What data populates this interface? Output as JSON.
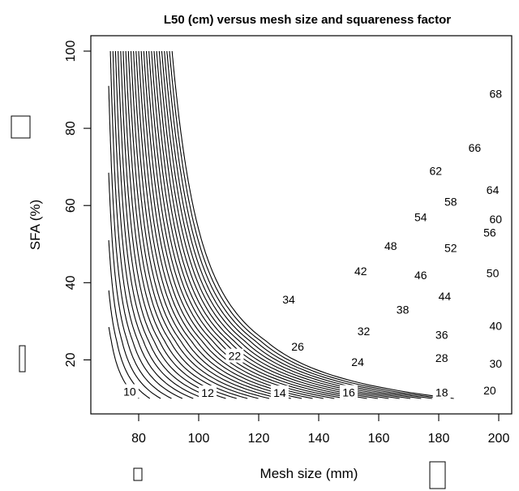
{
  "chart_data": {
    "type": "contour",
    "title": "L50 (cm) versus mesh size and squareness factor",
    "xlabel": "Mesh size (mm)",
    "ylabel": "SFA (%)",
    "xlim": [
      70,
      200
    ],
    "ylim": [
      10,
      100
    ],
    "x_ticks": [
      80,
      100,
      120,
      140,
      160,
      180,
      200
    ],
    "y_ticks": [
      20,
      40,
      60,
      80,
      100
    ],
    "grid": false,
    "legend": "none",
    "contour_levels": [
      10,
      12,
      14,
      16,
      18,
      20,
      22,
      24,
      26,
      28,
      30,
      32,
      34,
      36,
      38,
      40,
      42,
      44,
      46,
      48,
      50,
      52,
      54,
      56,
      58,
      60,
      62,
      64,
      66,
      68
    ],
    "contour_labels": [
      {
        "text": "10",
        "x": 77,
        "y": 11.8
      },
      {
        "text": "12",
        "x": 103,
        "y": 11.5
      },
      {
        "text": "14",
        "x": 127,
        "y": 11.5
      },
      {
        "text": "16",
        "x": 150,
        "y": 11.6
      },
      {
        "text": "18",
        "x": 181,
        "y": 11.6
      },
      {
        "text": "20",
        "x": 197,
        "y": 12.1
      },
      {
        "text": "22",
        "x": 112,
        "y": 21.0
      },
      {
        "text": "24",
        "x": 153,
        "y": 19.5
      },
      {
        "text": "26",
        "x": 133,
        "y": 23.5
      },
      {
        "text": "28",
        "x": 181,
        "y": 20.5
      },
      {
        "text": "30",
        "x": 199,
        "y": 19.0
      },
      {
        "text": "32",
        "x": 155,
        "y": 27.5
      },
      {
        "text": "34",
        "x": 130,
        "y": 35.7
      },
      {
        "text": "36",
        "x": 181,
        "y": 26.5
      },
      {
        "text": "38",
        "x": 168,
        "y": 33.0
      },
      {
        "text": "40",
        "x": 199,
        "y": 28.8
      },
      {
        "text": "42",
        "x": 154,
        "y": 43.0
      },
      {
        "text": "44",
        "x": 182,
        "y": 36.5
      },
      {
        "text": "46",
        "x": 174,
        "y": 42.0
      },
      {
        "text": "48",
        "x": 164,
        "y": 49.5
      },
      {
        "text": "50",
        "x": 198,
        "y": 42.5
      },
      {
        "text": "52",
        "x": 184,
        "y": 49.0
      },
      {
        "text": "54",
        "x": 174,
        "y": 57.0
      },
      {
        "text": "56",
        "x": 197,
        "y": 53.0
      },
      {
        "text": "58",
        "x": 184,
        "y": 61.0
      },
      {
        "text": "60",
        "x": 199,
        "y": 56.5
      },
      {
        "text": "62",
        "x": 179,
        "y": 69.0
      },
      {
        "text": "64",
        "x": 198,
        "y": 64.0
      },
      {
        "text": "66",
        "x": 192,
        "y": 75.0
      },
      {
        "text": "68",
        "x": 199,
        "y": 89.0
      }
    ]
  },
  "decorations": {
    "boxes": [
      {
        "name": "left-upper-box"
      },
      {
        "name": "left-lower-box"
      },
      {
        "name": "bottom-left-box"
      },
      {
        "name": "bottom-right-box"
      }
    ]
  }
}
